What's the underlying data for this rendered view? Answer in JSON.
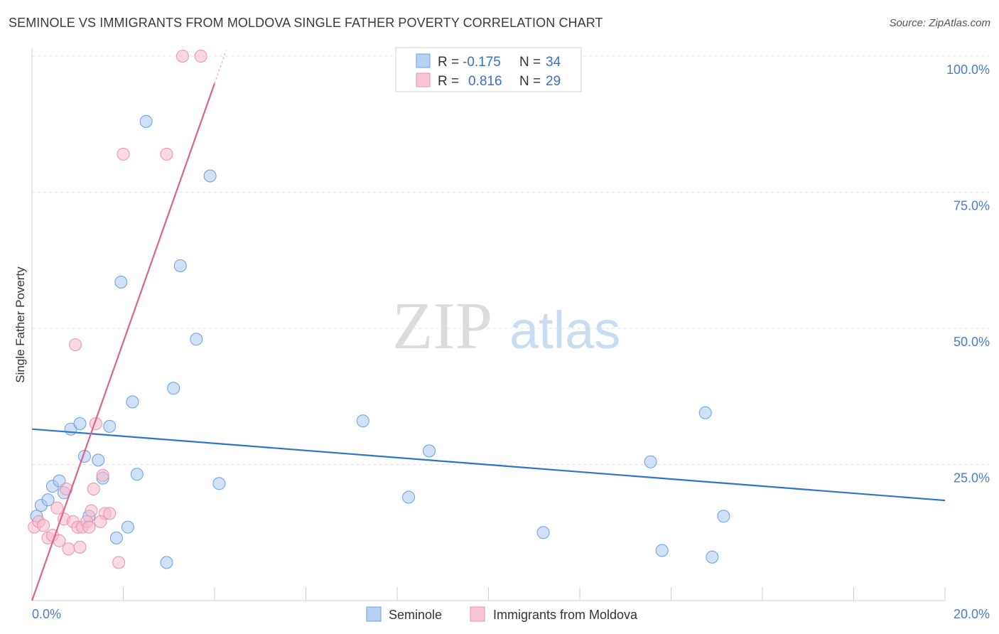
{
  "title": "SEMINOLE VS IMMIGRANTS FROM MOLDOVA SINGLE FATHER POVERTY CORRELATION CHART",
  "source": "Source: ZipAtlas.com",
  "watermark": {
    "zip": "ZIP",
    "atlas": "atlas"
  },
  "legend_top": [
    {
      "r_label": "R =",
      "r_value": "-0.175",
      "n_label": "N =",
      "n_value": "34"
    },
    {
      "r_label": "R =",
      "r_value": "0.816",
      "n_label": "N =",
      "n_value": "29"
    }
  ],
  "chart_data": {
    "type": "scatter",
    "xlabel": "",
    "ylabel": "Single Father Poverty",
    "xlim": [
      0,
      20
    ],
    "ylim": [
      0,
      100
    ],
    "x_tick_labels": [
      "0.0%",
      "20.0%"
    ],
    "y_tick_labels": [
      "25.0%",
      "50.0%",
      "75.0%",
      "100.0%"
    ],
    "y_ticks": [
      25,
      50,
      75,
      100
    ],
    "grid": true,
    "legend_position": "bottom",
    "series": [
      {
        "name": "Seminole",
        "color": "#a9c8f0",
        "stroke": "#6d9fd9",
        "line_color": "#2f74cc",
        "trend": {
          "x": [
            0,
            20
          ],
          "y": [
            31.5,
            18.4
          ]
        },
        "points": [
          [
            0.1,
            15.5
          ],
          [
            0.2,
            17.5
          ],
          [
            0.35,
            18.5
          ],
          [
            0.45,
            21
          ],
          [
            0.6,
            22
          ],
          [
            0.7,
            19.8
          ],
          [
            0.85,
            31.5
          ],
          [
            1.05,
            32.5
          ],
          [
            1.15,
            26.5
          ],
          [
            1.25,
            15.5
          ],
          [
            1.45,
            25.8
          ],
          [
            1.55,
            22.5
          ],
          [
            1.7,
            32
          ],
          [
            1.85,
            11.5
          ],
          [
            1.95,
            58.5
          ],
          [
            2.1,
            13.5
          ],
          [
            2.2,
            36.5
          ],
          [
            2.3,
            23.2
          ],
          [
            2.5,
            88
          ],
          [
            2.95,
            7
          ],
          [
            3.1,
            39
          ],
          [
            3.25,
            61.5
          ],
          [
            3.6,
            48
          ],
          [
            3.9,
            78
          ],
          [
            4.1,
            21.5
          ],
          [
            7.25,
            33
          ],
          [
            8.25,
            19
          ],
          [
            8.7,
            27.5
          ],
          [
            11.2,
            12.5
          ],
          [
            13.55,
            25.5
          ],
          [
            13.8,
            9.2
          ],
          [
            14.75,
            34.5
          ],
          [
            14.9,
            8
          ],
          [
            15.15,
            15.5
          ]
        ]
      },
      {
        "name": "Immigrants from Moldova",
        "color": "#f7b8cb",
        "stroke": "#e893ae",
        "line_color": "#e0608f",
        "trend": {
          "x": [
            0,
            4.0
          ],
          "y": [
            0,
            95
          ]
        },
        "points": [
          [
            0.05,
            13.5
          ],
          [
            0.15,
            14.5
          ],
          [
            0.25,
            13.8
          ],
          [
            0.35,
            11.5
          ],
          [
            0.45,
            12
          ],
          [
            0.55,
            17
          ],
          [
            0.6,
            11
          ],
          [
            0.7,
            15
          ],
          [
            0.75,
            20.5
          ],
          [
            0.8,
            9.5
          ],
          [
            0.9,
            14.5
          ],
          [
            1.0,
            13.5
          ],
          [
            1.05,
            9.8
          ],
          [
            1.1,
            13.5
          ],
          [
            1.2,
            14.5
          ],
          [
            1.3,
            16.5
          ],
          [
            1.35,
            20.5
          ],
          [
            1.4,
            32.5
          ],
          [
            1.55,
            23
          ],
          [
            1.6,
            16
          ],
          [
            1.7,
            16
          ],
          [
            1.5,
            14.5
          ],
          [
            1.9,
            7
          ],
          [
            0.95,
            47
          ],
          [
            2.0,
            82
          ],
          [
            2.95,
            82
          ],
          [
            3.3,
            100
          ],
          [
            3.7,
            100
          ],
          [
            1.25,
            13.5
          ]
        ]
      }
    ]
  }
}
